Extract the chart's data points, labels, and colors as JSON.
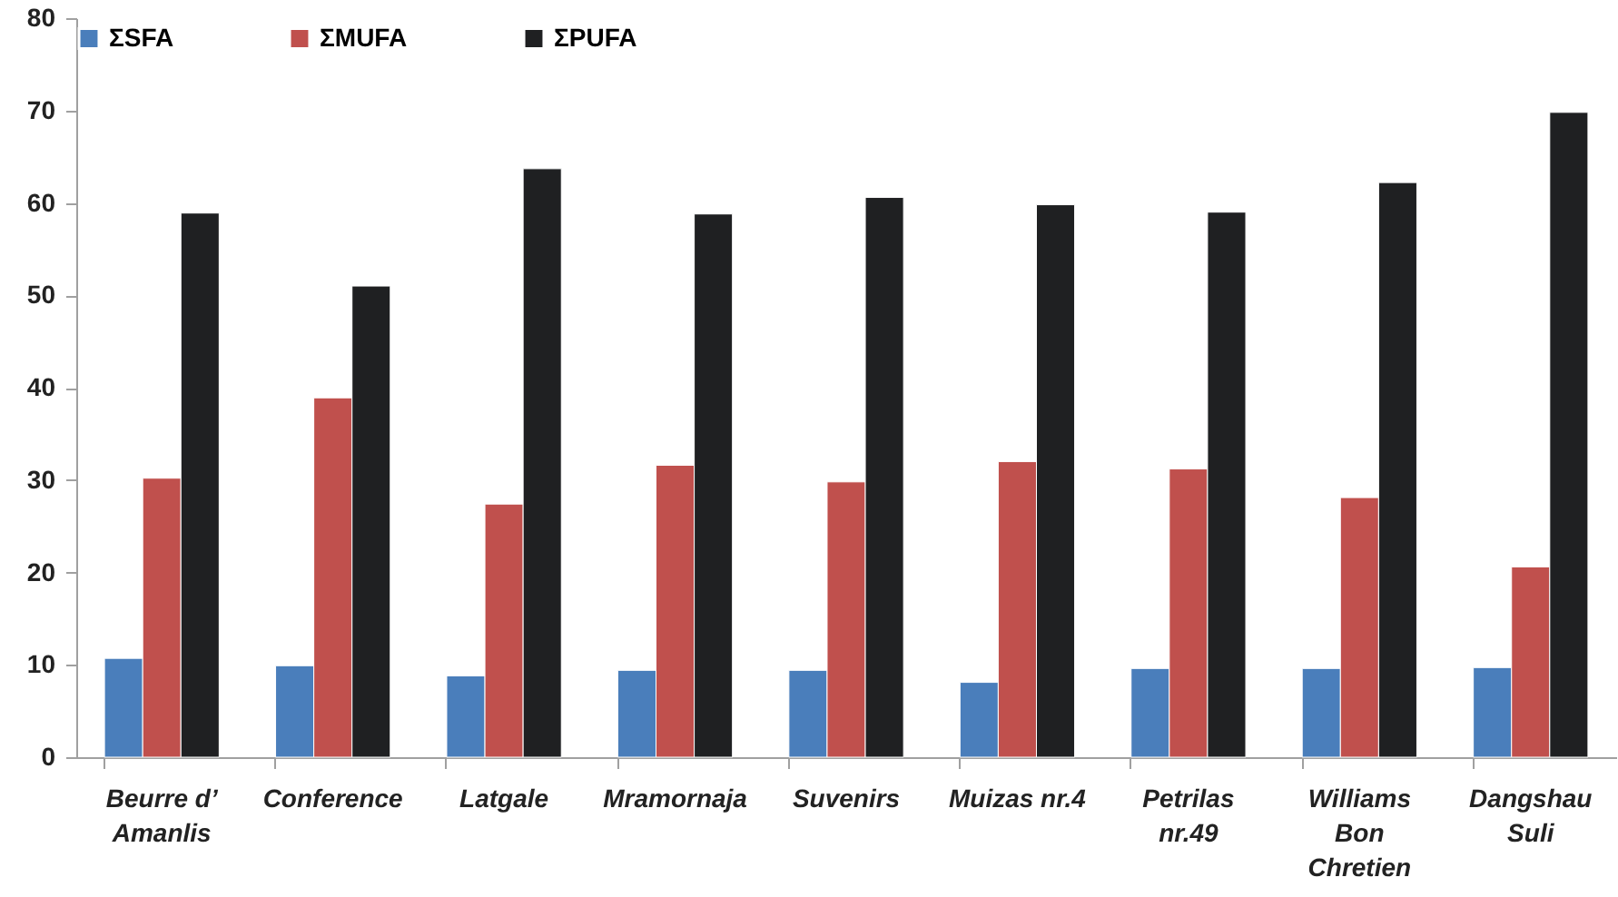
{
  "chart_data": {
    "type": "bar",
    "categories": [
      "Beurre d’\nAmanlis",
      "Conference",
      "Latgale",
      "Mramornaja",
      "Suvenirs",
      "Muizas nr.4",
      "Petrilas\nnr.49",
      "Williams\nBon\nChretien",
      "Dangshau\nSuli"
    ],
    "series": [
      {
        "name": "ΣSFA",
        "color": "#4a7ebb",
        "values": [
          10.7,
          9.9,
          8.8,
          9.4,
          9.4,
          8.1,
          9.6,
          9.6,
          9.7
        ]
      },
      {
        "name": "ΣMUFA",
        "color": "#c0504d",
        "values": [
          30.2,
          38.9,
          27.4,
          31.6,
          29.8,
          32.0,
          31.2,
          28.1,
          20.6
        ]
      },
      {
        "name": "ΣPUFA",
        "color": "#1f2022",
        "values": [
          58.9,
          51.0,
          63.7,
          58.8,
          60.6,
          59.8,
          59.0,
          62.2,
          69.8
        ]
      }
    ],
    "ylim": [
      0,
      80
    ],
    "yticks": [
      0,
      10,
      20,
      30,
      40,
      50,
      60,
      70,
      80
    ],
    "grid": false,
    "legend": "top"
  }
}
